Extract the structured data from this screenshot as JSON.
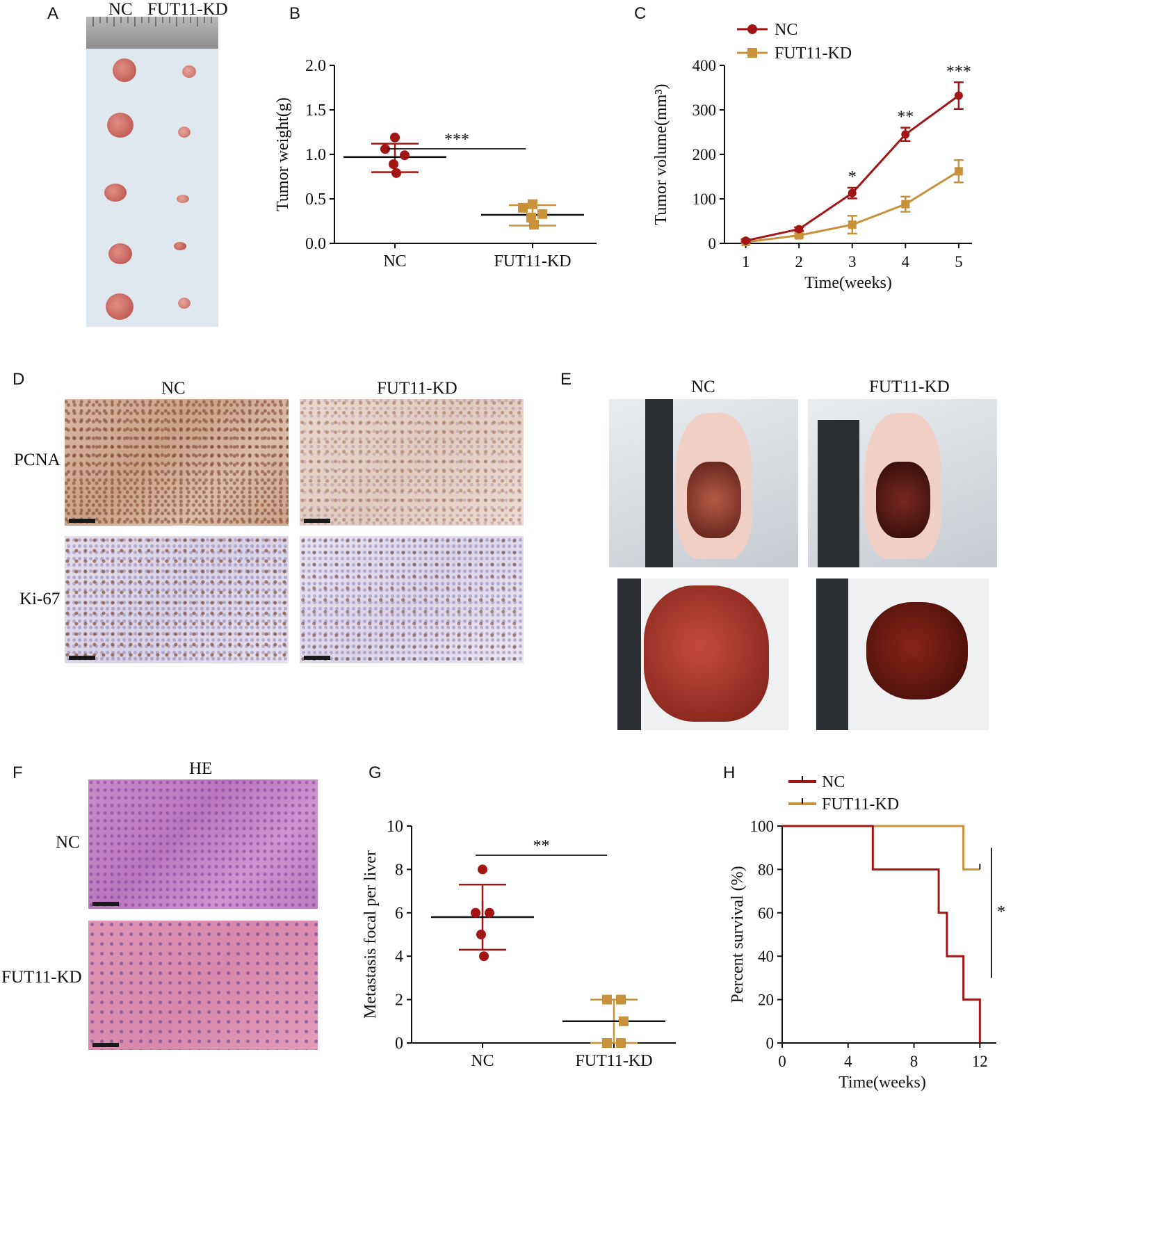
{
  "panels": {
    "A": {
      "letter": "A",
      "label_nc": "NC",
      "label_kd": "FUT11-KD"
    },
    "B": {
      "letter": "B"
    },
    "C": {
      "letter": "C"
    },
    "D": {
      "letter": "D",
      "col_nc": "NC",
      "col_kd": "FUT11-KD",
      "row1": "PCNA",
      "row2": "Ki-67"
    },
    "E": {
      "letter": "E",
      "col_nc": "NC",
      "col_kd": "FUT11-KD"
    },
    "F": {
      "letter": "F",
      "title": "HE",
      "row1": "NC",
      "row2": "FUT11-KD"
    },
    "G": {
      "letter": "G"
    },
    "H": {
      "letter": "H"
    }
  },
  "colors": {
    "nc": "#a31515",
    "kd": "#c8913a"
  },
  "chart_data": [
    {
      "id": "B",
      "type": "scatter",
      "ylabel": "Tumor weight(g)",
      "categories": [
        "NC",
        "FUT11-KD"
      ],
      "ylim": [
        0,
        2.0
      ],
      "yticks": [
        "0.0",
        "0.5",
        "1.0",
        "1.5",
        "2.0"
      ],
      "series": [
        {
          "name": "NC",
          "points": [
            1.19,
            1.06,
            0.99,
            0.89,
            0.79
          ],
          "mean": 0.97,
          "sd_upper": 1.12,
          "sd_lower": 0.8,
          "marker": "circle"
        },
        {
          "name": "FUT11-KD",
          "points": [
            0.44,
            0.4,
            0.33,
            0.29,
            0.21
          ],
          "mean": 0.32,
          "sd_upper": 0.43,
          "sd_lower": 0.2,
          "marker": "square"
        }
      ],
      "significance": "***"
    },
    {
      "id": "C",
      "type": "line",
      "xlabel": "Time(weeks)",
      "ylabel": "Tumor volume(mm³)",
      "x": [
        1,
        2,
        3,
        4,
        5
      ],
      "xlim": [
        0.6,
        5.25
      ],
      "ylim": [
        0,
        400
      ],
      "yticks": [
        "0",
        "100",
        "200",
        "300",
        "400"
      ],
      "series": [
        {
          "name": "NC",
          "values": [
            6,
            32,
            113,
            245,
            332
          ],
          "err": [
            3,
            4,
            12,
            15,
            30
          ],
          "marker": "circle"
        },
        {
          "name": "FUT11-KD",
          "values": [
            3,
            18,
            42,
            88,
            162
          ],
          "err": [
            2,
            4,
            20,
            17,
            25
          ],
          "marker": "square"
        }
      ],
      "annotations": [
        {
          "x": 3,
          "text": "*"
        },
        {
          "x": 4,
          "text": "**"
        },
        {
          "x": 5,
          "text": "***"
        }
      ]
    },
    {
      "id": "G",
      "type": "scatter",
      "ylabel": "Metastasis focal per liver",
      "categories": [
        "NC",
        "FUT11-KD"
      ],
      "ylim": [
        0,
        10
      ],
      "yticks": [
        "0",
        "2",
        "4",
        "6",
        "8",
        "10"
      ],
      "series": [
        {
          "name": "NC",
          "points": [
            8,
            6,
            6,
            5,
            4
          ],
          "mean": 5.8,
          "sd_upper": 7.3,
          "sd_lower": 4.3,
          "marker": "circle"
        },
        {
          "name": "FUT11-KD",
          "points": [
            2,
            2,
            1,
            0,
            0
          ],
          "mean": 1.0,
          "sd_upper": 2.0,
          "sd_lower": 0.0,
          "marker": "square"
        }
      ],
      "significance": "**"
    },
    {
      "id": "H",
      "type": "line",
      "xlabel": "Time(weeks)",
      "ylabel": "Percent survival (%)",
      "xlim": [
        0,
        13
      ],
      "ylim": [
        0,
        100
      ],
      "xticks": [
        "0",
        "4",
        "8",
        "12"
      ],
      "yticks": [
        "0",
        "20",
        "40",
        "60",
        "80",
        "100"
      ],
      "series": [
        {
          "name": "NC",
          "steps": [
            [
              0,
              100
            ],
            [
              5.5,
              100
            ],
            [
              5.5,
              80
            ],
            [
              9.5,
              80
            ],
            [
              9.5,
              60
            ],
            [
              10,
              60
            ],
            [
              10,
              40
            ],
            [
              11,
              40
            ],
            [
              11,
              20
            ],
            [
              12,
              20
            ],
            [
              12,
              0
            ]
          ]
        },
        {
          "name": "FUT11-KD",
          "steps": [
            [
              0,
              100
            ],
            [
              11,
              100
            ],
            [
              11,
              80
            ],
            [
              12,
              80
            ]
          ]
        }
      ],
      "significance": "*"
    }
  ]
}
